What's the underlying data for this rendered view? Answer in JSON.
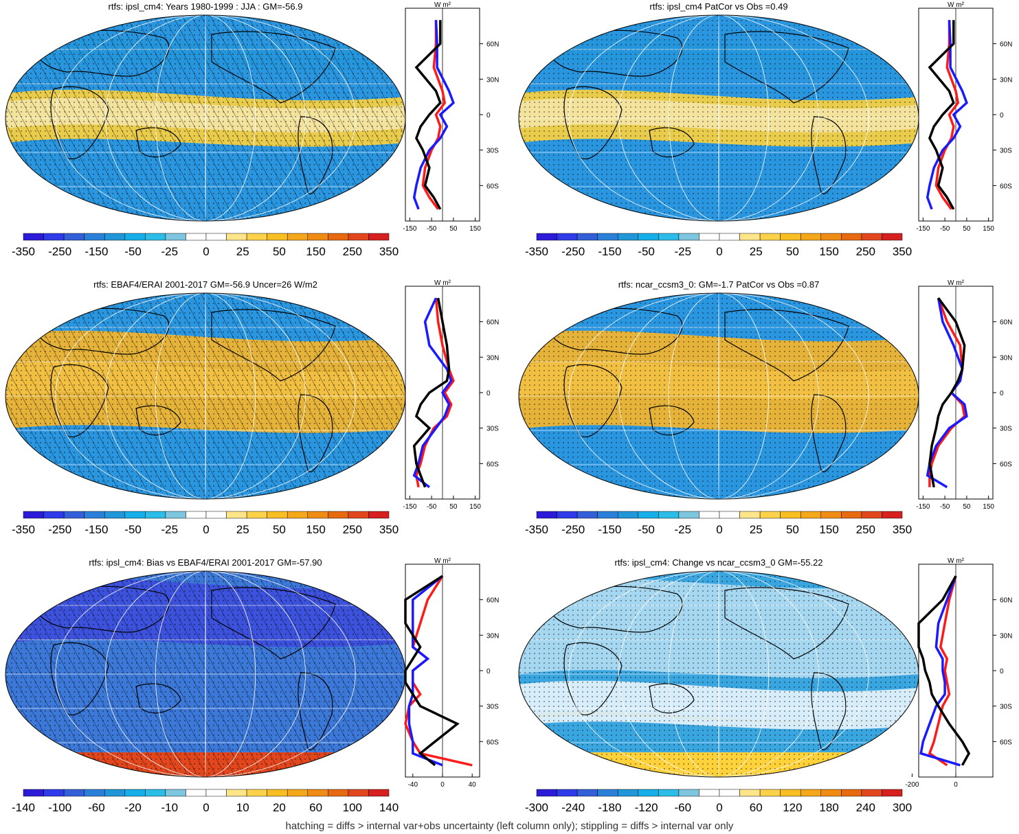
{
  "footer": "hatching = diffs > internal var+obs uncertainty (left column only); stippling = diffs > internal var only",
  "colors": {
    "scale": [
      "#2b1bd9",
      "#2f3be8",
      "#3360d9",
      "#2a80d9",
      "#2196d8",
      "#16aee8",
      "#2bbde8",
      "#7cc6e0",
      "#ffffff",
      "#ffffff",
      "#ffe58a",
      "#fcd24a",
      "#f8be22",
      "#f5a71a",
      "#f08c14",
      "#e86a10",
      "#e2461c",
      "#d81f1f"
    ],
    "red_line": "#ff1a1a",
    "blue_line": "#1a1aff",
    "black_line": "#000000"
  },
  "zonal_units": "W m²",
  "lat_ticks": [
    "60N",
    "30N",
    "0",
    "30S",
    "60S"
  ],
  "panels": [
    {
      "title": "rtfs: ipsl_cm4: Years 1980-1999 : JJA : GM=-56.9",
      "map_style": "obs",
      "hatch": true,
      "colorbar_labels": [
        "-350",
        "-250",
        "-150",
        "-50",
        "-25",
        "0",
        "25",
        "50",
        "150",
        "250",
        "350"
      ],
      "zonal_xticks": [
        "-150",
        "-50",
        "50",
        "150"
      ]
    },
    {
      "title": "rtfs: ipsl_cm4 PatCor vs Obs =0.49",
      "map_style": "obs",
      "hatch": false,
      "colorbar_labels": [
        "-350",
        "-250",
        "-150",
        "-50",
        "-25",
        "0",
        "25",
        "50",
        "150",
        "250",
        "350"
      ],
      "zonal_xticks": [
        "-150",
        "-50",
        "50",
        "150"
      ]
    },
    {
      "title": "rtfs: EBAF4/ERAI 2001-2017 GM=-56.9 Uncer=26 W/m2",
      "map_style": "warm",
      "hatch": true,
      "colorbar_labels": [
        "-350",
        "-250",
        "-150",
        "-50",
        "-25",
        "0",
        "25",
        "50",
        "150",
        "250",
        "350"
      ],
      "zonal_xticks": [
        "-150",
        "-50",
        "50",
        "150"
      ]
    },
    {
      "title": "rtfs: ncar_ccsm3_0: GM=-1.7 PatCor vs Obs =0.87",
      "map_style": "warm",
      "hatch": false,
      "colorbar_labels": [
        "-350",
        "-250",
        "-150",
        "-50",
        "-25",
        "0",
        "25",
        "50",
        "150",
        "250",
        "350"
      ],
      "zonal_xticks": [
        "-150",
        "-50",
        "50",
        "150"
      ]
    },
    {
      "title": "rtfs: ipsl_cm4: Bias vs EBAF4/ERAI 2001-2017 GM=-57.90",
      "map_style": "bias",
      "hatch": true,
      "colorbar_labels": [
        "-140",
        "-100",
        "-60",
        "-20",
        "-10",
        "0",
        "10",
        "20",
        "60",
        "100",
        "140"
      ],
      "zonal_xticks": [
        "-40",
        "0",
        "40"
      ]
    },
    {
      "title": "rtfs: ipsl_cm4: Change vs ncar_ccsm3_0 GM=-55.22",
      "map_style": "change",
      "hatch": false,
      "colorbar_labels": [
        "-300",
        "-240",
        "-180",
        "-120",
        "-60",
        "0",
        "60",
        "120",
        "180",
        "240",
        "300"
      ],
      "zonal_xticks": [
        "-200",
        "0"
      ]
    }
  ],
  "chart_data": [
    {
      "type": "heatmap",
      "title": "rtfs: ipsl_cm4: Years 1980-1999 : JJA : GM=-56.9",
      "zonal_mean": {
        "lat": [
          80,
          60,
          40,
          20,
          10,
          0,
          -10,
          -20,
          -30,
          -45,
          -60,
          -70,
          -80
        ],
        "ipsl_cm4": [
          -30,
          -30,
          -40,
          0,
          10,
          -30,
          -10,
          -20,
          -50,
          -80,
          -90,
          -60,
          -20
        ],
        "obs": [
          -30,
          -25,
          -25,
          30,
          50,
          -10,
          20,
          -10,
          -60,
          -100,
          -120,
          -130,
          -110
        ],
        "diff": [
          -10,
          -10,
          -120,
          -30,
          -10,
          -60,
          -100,
          -120,
          -90,
          -60,
          -80,
          -40,
          -10
        ]
      }
    },
    {
      "type": "heatmap",
      "title": "rtfs: ipsl_cm4 PatCor vs Obs =0.49",
      "zonal_mean": {
        "lat": [
          80,
          60,
          40,
          20,
          10,
          0,
          -10,
          -20,
          -30,
          -45,
          -60,
          -70,
          -80
        ],
        "ipsl_cm4": [
          -30,
          -30,
          -40,
          0,
          10,
          -30,
          -10,
          -20,
          -50,
          -80,
          -90,
          -60,
          -20
        ],
        "obs": [
          -30,
          -25,
          -25,
          30,
          50,
          -10,
          20,
          -10,
          -60,
          -100,
          -120,
          -130,
          -110
        ],
        "diff": [
          -10,
          -10,
          -120,
          -30,
          -10,
          -60,
          -100,
          -120,
          -90,
          -60,
          -80,
          -40,
          -10
        ]
      }
    },
    {
      "type": "heatmap",
      "title": "rtfs: EBAF4/ERAI 2001-2017 GM=-56.9 Uncer=26 W/m2",
      "zonal_mean": {
        "lat": [
          80,
          60,
          40,
          20,
          10,
          0,
          -10,
          -20,
          -30,
          -45,
          -60,
          -70,
          -80
        ],
        "a": [
          -30,
          -20,
          0,
          30,
          50,
          10,
          40,
          20,
          -40,
          -80,
          -100,
          -120,
          -110
        ],
        "b": [
          -30,
          -80,
          -60,
          20,
          40,
          0,
          30,
          10,
          -30,
          -90,
          -110,
          -130,
          -60
        ],
        "c": [
          -20,
          0,
          20,
          30,
          20,
          -60,
          -100,
          -120,
          -60,
          -130,
          -120,
          -100,
          -80
        ]
      }
    },
    {
      "type": "heatmap",
      "title": "rtfs: ncar_ccsm3_0: GM=-1.7 PatCor vs Obs =0.87",
      "zonal_mean": {
        "lat": [
          80,
          60,
          40,
          20,
          10,
          0,
          -10,
          -20,
          -30,
          -45,
          -60,
          -70,
          -80
        ],
        "a": [
          -80,
          -40,
          20,
          30,
          20,
          -20,
          30,
          40,
          -20,
          -80,
          -110,
          -120,
          -120
        ],
        "b": [
          -80,
          -60,
          -10,
          30,
          20,
          -20,
          40,
          50,
          -30,
          -90,
          -120,
          -130,
          -40
        ],
        "c": [
          -80,
          0,
          40,
          30,
          10,
          -20,
          -60,
          -80,
          -90,
          -110,
          -120,
          -110,
          -100
        ]
      }
    },
    {
      "type": "heatmap",
      "title": "rtfs: ipsl_cm4: Bias vs EBAF4/ERAI 2001-2017 GM=-57.90",
      "zonal_mean": {
        "lat": [
          80,
          60,
          40,
          20,
          10,
          0,
          -10,
          -20,
          -30,
          -45,
          -60,
          -70,
          -80
        ],
        "a": [
          0,
          -20,
          -30,
          -40,
          -20,
          -40,
          -40,
          -30,
          -45,
          -50,
          -40,
          -30,
          40
        ],
        "b": [
          0,
          -40,
          -40,
          -40,
          -20,
          -40,
          -40,
          -40,
          -45,
          -45,
          -40,
          -40,
          0
        ],
        "c": [
          0,
          -50,
          -50,
          -30,
          -40,
          -50,
          -50,
          -40,
          -30,
          20,
          -10,
          -30,
          -10
        ]
      }
    },
    {
      "type": "heatmap",
      "title": "rtfs: ipsl_cm4: Change vs ncar_ccsm3_0 GM=-55.22",
      "zonal_mean": {
        "lat": [
          80,
          60,
          40,
          20,
          10,
          0,
          -10,
          -20,
          -30,
          -45,
          -60,
          -70,
          -80
        ],
        "a": [
          0,
          -30,
          -50,
          -70,
          -40,
          -50,
          -40,
          -30,
          -60,
          -80,
          -100,
          -120,
          -40
        ],
        "b": [
          0,
          -40,
          -80,
          -90,
          -60,
          -60,
          -50,
          -50,
          -90,
          -120,
          -150,
          -160,
          20
        ],
        "c": [
          0,
          -60,
          -180,
          -220,
          -150,
          -140,
          -120,
          -110,
          -80,
          -30,
          30,
          60,
          30
        ]
      }
    }
  ]
}
